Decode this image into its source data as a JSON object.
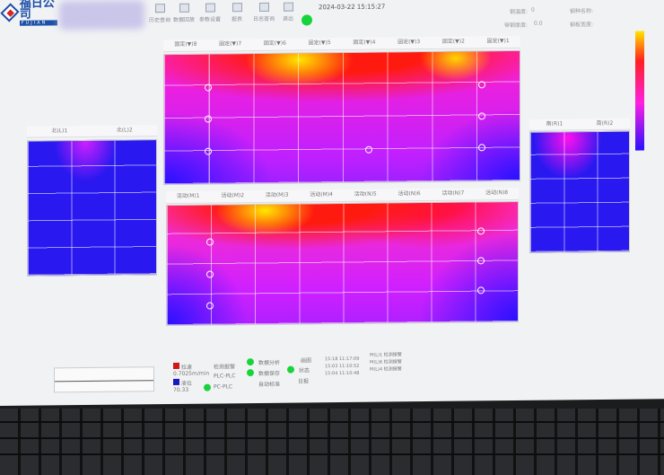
{
  "header": {
    "company": "福日公司",
    "company_sub": "FUJIAN",
    "datetime": "2024-03-22 15:15:27",
    "toolbar": [
      {
        "label": "历史查询",
        "icon": "history-icon"
      },
      {
        "label": "数据回放",
        "icon": "replay-icon"
      },
      {
        "label": "参数设置",
        "icon": "settings-icon"
      },
      {
        "label": "报表",
        "icon": "report-icon"
      },
      {
        "label": "日志查询",
        "icon": "log-icon"
      },
      {
        "label": "退出",
        "icon": "exit-icon"
      }
    ],
    "connection_color": "#18d43c",
    "fields": [
      {
        "label": "钢温度:",
        "value": "0"
      },
      {
        "label": "钢种名称:",
        "value": ""
      },
      {
        "label": "带钢厚度:",
        "value": "0.0"
      },
      {
        "label": "钢板宽度:",
        "value": ""
      }
    ]
  },
  "top_map": {
    "labels": [
      "固定(▼)8",
      "固定(▼)7",
      "固定(▼)6",
      "固定(▼)5",
      "固定(▼)4",
      "固定(▼)3",
      "固定(▼)2",
      "固定(▼)1"
    ]
  },
  "bottom_map": {
    "labels": [
      "活动(M)1",
      "活动(M)2",
      "活动(M)3",
      "活动(M)4",
      "活动(N)5",
      "活动(N)6",
      "活动(N)7",
      "活动(N)8"
    ]
  },
  "left_map": {
    "labels": [
      "北(L)1",
      "北(L)2"
    ]
  },
  "right_map": {
    "labels": [
      "南(R)1",
      "南(R)2"
    ]
  },
  "colorbar": {
    "colors": [
      "#ffe600",
      "#ff2020",
      "#ff20e0",
      "#2a10ff"
    ]
  },
  "status": {
    "speed_label": "拉速",
    "speed_value": "0.7025m/min",
    "level_label": "液位",
    "level_value": "70.33",
    "speed_color": "#d01818",
    "level_color": "#1818c0",
    "items": [
      "检测报警",
      "PLC-PLC",
      "PC-PLC",
      "数据分析",
      "数据保存",
      "自动标准",
      "画图",
      "状态",
      "日报"
    ],
    "log": [
      "15:18 11:17:09",
      "15:03 11:10:52",
      "15:04 11:10:48"
    ],
    "log_msgs": [
      "M(L)1 检测报警",
      "M(L)6 检测报警",
      "M(L)4 检测报警"
    ]
  }
}
